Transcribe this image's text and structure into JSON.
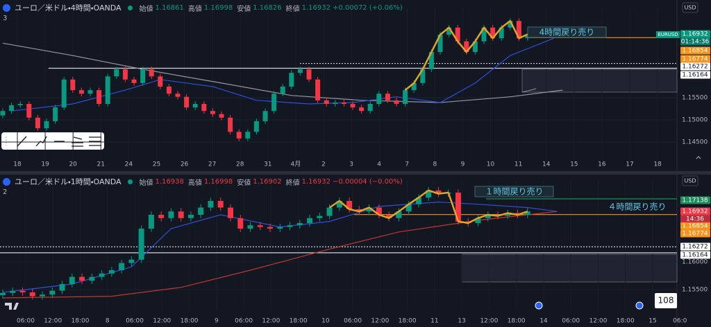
{
  "panels": [
    {
      "symbol": "ユーロ／米ドル・4時間・OANDA",
      "value_color": "#089981",
      "ohlc": [
        {
          "label": "始値",
          "value": 1.16861
        },
        {
          "label": "高値",
          "value": 1.16998
        },
        {
          "label": "安値",
          "value": 1.16826
        },
        {
          "label": "終値",
          "value": 1.16932
        }
      ],
      "change": "+0.00072 (+0.06%)",
      "indicator_count": "3",
      "currency": "USD",
      "badge": "EURUSD",
      "ylim": [
        1.1411,
        1.1739
      ],
      "yticks": [
        {
          "value": 1.145,
          "label": "1.14500"
        },
        {
          "value": 1.15,
          "label": "1.15000"
        },
        {
          "value": 1.155,
          "label": "1.15500"
        }
      ],
      "price_tags": [
        {
          "value": 1.16932,
          "color": "#089981"
        },
        {
          "value": 1.16854,
          "color": "#f7931a"
        },
        {
          "value": 1.16774,
          "color": "#f7931a"
        },
        {
          "value": 1.16272,
          "color": "#ffffff"
        },
        {
          "value": 1.16164,
          "color": "#ffffff"
        }
      ],
      "countdown": "01:14:36",
      "time_labels": [
        "18",
        "19",
        "20",
        "21",
        "24",
        "25",
        "26",
        "27",
        "28",
        "31",
        "4月",
        "2",
        "3",
        "4",
        "7",
        "8",
        "9",
        "10",
        "11",
        "14",
        "15",
        "16",
        "17",
        "18"
      ],
      "annotations": [
        "4時間戻り売り"
      ],
      "zigzag_start": 46,
      "moving_averages": [
        {
          "color": "#9598a1",
          "x": [
            0,
            8,
            16,
            25,
            33,
            41,
            50,
            58,
            64
          ],
          "values": [
            1.1673,
            1.1645,
            1.1614,
            1.1583,
            1.1555,
            1.1544,
            1.1539,
            1.1552,
            1.1567
          ]
        },
        {
          "color": "#2f4fd8",
          "x": [
            1,
            8,
            14,
            18,
            24,
            29,
            35,
            40,
            45,
            50,
            54,
            58,
            63
          ],
          "values": [
            1.152,
            1.1536,
            1.1567,
            1.1591,
            1.1575,
            1.1544,
            1.1536,
            1.1539,
            1.1552,
            1.1539,
            1.1583,
            1.1645,
            1.1684
          ]
        }
      ],
      "candles": [
        [
          1.151,
          1.1526,
          1.1504,
          1.152
        ],
        [
          1.152,
          1.1539,
          1.1514,
          1.1533
        ],
        [
          1.1533,
          1.1542,
          1.1527,
          1.1536
        ],
        [
          1.1536,
          1.1542,
          1.1499,
          1.1505
        ],
        [
          1.1505,
          1.1511,
          1.1475,
          1.1481
        ],
        [
          1.1481,
          1.1503,
          1.1475,
          1.1497
        ],
        [
          1.1497,
          1.1534,
          1.1491,
          1.1528
        ],
        [
          1.1528,
          1.1597,
          1.1522,
          1.1591
        ],
        [
          1.1591,
          1.1597,
          1.1561,
          1.1567
        ],
        [
          1.1567,
          1.1573,
          1.1553,
          1.1559
        ],
        [
          1.1559,
          1.1573,
          1.1553,
          1.1567
        ],
        [
          1.1567,
          1.1573,
          1.153,
          1.1536
        ],
        [
          1.1536,
          1.1604,
          1.153,
          1.1598
        ],
        [
          1.1598,
          1.162,
          1.1592,
          1.1614
        ],
        [
          1.1614,
          1.162,
          1.1585,
          1.1591
        ],
        [
          1.1591,
          1.1597,
          1.1577,
          1.1583
        ],
        [
          1.1583,
          1.162,
          1.1577,
          1.1614
        ],
        [
          1.1614,
          1.162,
          1.1592,
          1.1598
        ],
        [
          1.1598,
          1.1604,
          1.1569,
          1.1575
        ],
        [
          1.1575,
          1.1581,
          1.1553,
          1.1559
        ],
        [
          1.1559,
          1.1565,
          1.1546,
          1.1552
        ],
        [
          1.1552,
          1.1558,
          1.1522,
          1.1528
        ],
        [
          1.1528,
          1.1542,
          1.1522,
          1.1536
        ],
        [
          1.1536,
          1.1542,
          1.1514,
          1.152
        ],
        [
          1.152,
          1.1526,
          1.1507,
          1.1513
        ],
        [
          1.1513,
          1.1519,
          1.1499,
          1.1505
        ],
        [
          1.1505,
          1.1511,
          1.1467,
          1.1473
        ],
        [
          1.1473,
          1.1479,
          1.1452,
          1.1458
        ],
        [
          1.1458,
          1.1479,
          1.1452,
          1.1473
        ],
        [
          1.1473,
          1.1503,
          1.1467,
          1.1497
        ],
        [
          1.1497,
          1.1526,
          1.1491,
          1.152
        ],
        [
          1.152,
          1.1565,
          1.1514,
          1.1559
        ],
        [
          1.1559,
          1.1581,
          1.1553,
          1.1575
        ],
        [
          1.1575,
          1.1612,
          1.1569,
          1.1606
        ],
        [
          1.1606,
          1.162,
          1.16,
          1.1614
        ],
        [
          1.1614,
          1.162,
          1.1585,
          1.1591
        ],
        [
          1.1591,
          1.1597,
          1.1538,
          1.1544
        ],
        [
          1.1544,
          1.155,
          1.153,
          1.1536
        ],
        [
          1.1536,
          1.1545,
          1.153,
          1.1539
        ],
        [
          1.1539,
          1.1545,
          1.153,
          1.1536
        ],
        [
          1.1536,
          1.1542,
          1.1522,
          1.1528
        ],
        [
          1.1528,
          1.1534,
          1.1514,
          1.152
        ],
        [
          1.152,
          1.1542,
          1.1514,
          1.1536
        ],
        [
          1.1536,
          1.1565,
          1.153,
          1.1559
        ],
        [
          1.1559,
          1.1565,
          1.1538,
          1.1544
        ],
        [
          1.1544,
          1.155,
          1.153,
          1.1536
        ],
        [
          1.1536,
          1.1573,
          1.153,
          1.1567
        ],
        [
          1.1567,
          1.1589,
          1.1561,
          1.1583
        ],
        [
          1.1583,
          1.162,
          1.1577,
          1.1614
        ],
        [
          1.1614,
          1.1659,
          1.1608,
          1.1653
        ],
        [
          1.1653,
          1.1698,
          1.1647,
          1.1692
        ],
        [
          1.1692,
          1.1714,
          1.1686,
          1.1708
        ],
        [
          1.1708,
          1.1714,
          1.1671,
          1.1677
        ],
        [
          1.1677,
          1.1683,
          1.1647,
          1.1653
        ],
        [
          1.1653,
          1.1683,
          1.1647,
          1.1677
        ],
        [
          1.1677,
          1.1714,
          1.1671,
          1.1708
        ],
        [
          1.1708,
          1.1714,
          1.1678,
          1.1684
        ],
        [
          1.1684,
          1.1714,
          1.1678,
          1.1708
        ],
        [
          1.1708,
          1.1729,
          1.1702,
          1.1723
        ],
        [
          1.1723,
          1.1729,
          1.1678,
          1.1684
        ],
        [
          1.1684,
          1.1699,
          1.1678,
          1.1693
        ]
      ]
    },
    {
      "symbol": "ユーロ／米ドル・1時間・OANDA",
      "value_color": "#f23645",
      "ohlc": [
        {
          "label": "始値",
          "value": 1.16938
        },
        {
          "label": "高値",
          "value": 1.16998
        },
        {
          "label": "安値",
          "value": 1.16902
        },
        {
          "label": "終値",
          "value": 1.16932
        }
      ],
      "change": "−0.00004 (−0.00%)",
      "indicator_count": "2",
      "currency": "USD",
      "ylim": [
        1.15163,
        1.17375
      ],
      "yticks": [
        {
          "value": 1.155,
          "label": "1.15500"
        },
        {
          "value": 1.16,
          "label": "1.16000"
        }
      ],
      "price_tags": [
        {
          "value": 1.17138,
          "color": "#1e8f5a"
        },
        {
          "value": 1.16932,
          "color": "#f23645"
        },
        {
          "value": 1.16854,
          "color": "#f7931a"
        },
        {
          "value": 1.16774,
          "color": "#f7931a"
        },
        {
          "value": 1.16272,
          "color": "#ffffff"
        },
        {
          "value": 1.16164,
          "color": "#ffffff"
        }
      ],
      "countdown": "14:36",
      "time_labels": [
        "06:00",
        "12:00",
        "18:00",
        "8",
        "06:00",
        "12:00",
        "18:00",
        "9",
        "06:00",
        "12:00",
        "18:00",
        "10",
        "06:00",
        "12:00",
        "18:00",
        "11",
        "13",
        "12:00",
        "18:00",
        "14",
        "06:00",
        "12:00",
        "18:00",
        "15",
        "06:0"
      ],
      "annotations": [
        "１時間戻り売り",
        "４時間戻り売り"
      ],
      "zigzag_start": 33,
      "counter": "108",
      "moving_averages": [
        {
          "color": "#c0392b",
          "x": [
            0,
            11,
            18,
            25,
            33,
            40,
            48,
            56
          ],
          "values": [
            1.1535,
            1.1538,
            1.1554,
            1.1585,
            1.1623,
            1.1654,
            1.1675,
            1.1691
          ]
        },
        {
          "color": "#2f4fd8",
          "x": [
            0,
            7,
            13,
            17,
            22,
            28,
            33,
            38,
            44,
            48,
            53,
            56
          ],
          "values": [
            1.1545,
            1.156,
            1.1591,
            1.166,
            1.1685,
            1.1663,
            1.1673,
            1.17,
            1.1708,
            1.1704,
            1.1698,
            1.1691
          ]
        }
      ],
      "candles": [
        [
          1.154,
          1.155,
          1.1534,
          1.1544
        ],
        [
          1.1544,
          1.1554,
          1.1538,
          1.1548
        ],
        [
          1.1548,
          1.1554,
          1.1539,
          1.1545
        ],
        [
          1.1545,
          1.1551,
          1.1532,
          1.1538
        ],
        [
          1.1538,
          1.1547,
          1.1532,
          1.1541
        ],
        [
          1.1541,
          1.1554,
          1.1535,
          1.1548
        ],
        [
          1.1548,
          1.1566,
          1.1542,
          1.156
        ],
        [
          1.156,
          1.1579,
          1.1554,
          1.1573
        ],
        [
          1.1573,
          1.1579,
          1.156,
          1.1566
        ],
        [
          1.1566,
          1.1579,
          1.156,
          1.1573
        ],
        [
          1.1573,
          1.1585,
          1.1567,
          1.1579
        ],
        [
          1.1579,
          1.1591,
          1.1573,
          1.1585
        ],
        [
          1.1585,
          1.1604,
          1.1579,
          1.1598
        ],
        [
          1.1598,
          1.161,
          1.1592,
          1.1604
        ],
        [
          1.1604,
          1.1666,
          1.1598,
          1.166
        ],
        [
          1.166,
          1.1691,
          1.1654,
          1.1685
        ],
        [
          1.1685,
          1.1691,
          1.1673,
          1.1679
        ],
        [
          1.1679,
          1.1697,
          1.1673,
          1.1691
        ],
        [
          1.1691,
          1.1697,
          1.1673,
          1.1679
        ],
        [
          1.1679,
          1.1691,
          1.1673,
          1.1685
        ],
        [
          1.1685,
          1.1704,
          1.1679,
          1.1698
        ],
        [
          1.1698,
          1.1716,
          1.1692,
          1.171
        ],
        [
          1.171,
          1.1716,
          1.1692,
          1.1698
        ],
        [
          1.1698,
          1.1704,
          1.1673,
          1.1679
        ],
        [
          1.1679,
          1.1685,
          1.1654,
          1.166
        ],
        [
          1.166,
          1.1672,
          1.1654,
          1.1666
        ],
        [
          1.1666,
          1.1672,
          1.1657,
          1.1663
        ],
        [
          1.1663,
          1.1669,
          1.1654,
          1.166
        ],
        [
          1.166,
          1.1669,
          1.1654,
          1.1663
        ],
        [
          1.1663,
          1.1672,
          1.1657,
          1.1666
        ],
        [
          1.1666,
          1.1676,
          1.166,
          1.167
        ],
        [
          1.167,
          1.1685,
          1.1664,
          1.1679
        ],
        [
          1.1679,
          1.1689,
          1.1673,
          1.1683
        ],
        [
          1.1683,
          1.1704,
          1.1677,
          1.1698
        ],
        [
          1.1698,
          1.1716,
          1.1692,
          1.171
        ],
        [
          1.171,
          1.1716,
          1.1689,
          1.1695
        ],
        [
          1.1695,
          1.1701,
          1.1685,
          1.1691
        ],
        [
          1.1691,
          1.1704,
          1.1685,
          1.1698
        ],
        [
          1.1698,
          1.1704,
          1.1679,
          1.1685
        ],
        [
          1.1685,
          1.1691,
          1.1673,
          1.1679
        ],
        [
          1.1679,
          1.1697,
          1.1673,
          1.1691
        ],
        [
          1.1691,
          1.171,
          1.1685,
          1.1704
        ],
        [
          1.1704,
          1.1722,
          1.1698,
          1.1716
        ],
        [
          1.1716,
          1.1735,
          1.171,
          1.1729
        ],
        [
          1.1729,
          1.1735,
          1.1717,
          1.1723
        ],
        [
          1.1723,
          1.1731,
          1.1717,
          1.1725
        ],
        [
          1.1725,
          1.1731,
          1.1667,
          1.1673
        ],
        [
          1.1673,
          1.1679,
          1.1664,
          1.167
        ],
        [
          1.167,
          1.1685,
          1.1664,
          1.1679
        ],
        [
          1.1679,
          1.1691,
          1.1673,
          1.1685
        ],
        [
          1.1685,
          1.1691,
          1.1677,
          1.1683
        ],
        [
          1.1683,
          1.1694,
          1.1677,
          1.1688
        ],
        [
          1.1688,
          1.1694,
          1.1679,
          1.1685
        ],
        [
          1.1685,
          1.1697,
          1.1679,
          1.1691
        ]
      ]
    }
  ]
}
